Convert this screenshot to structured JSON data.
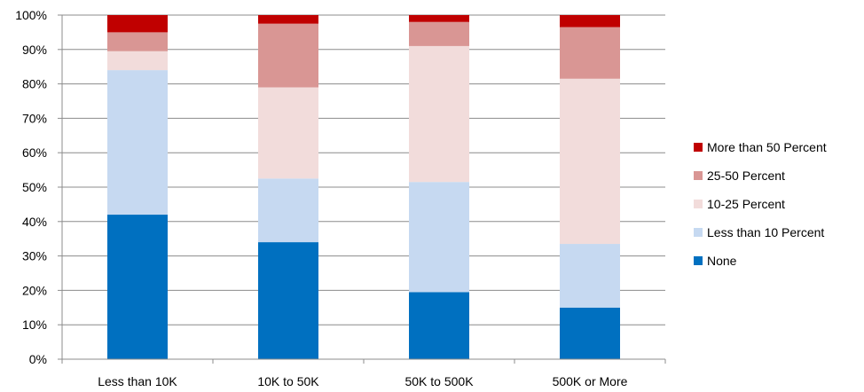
{
  "chart_data": {
    "type": "bar",
    "stacked": true,
    "normalized": true,
    "categories": [
      "Less than 10K",
      "10K to 50K",
      "50K to 500K",
      "500K or More"
    ],
    "series": [
      {
        "name": "None",
        "color": "#0070C0",
        "values": [
          42,
          34,
          19.5,
          15
        ]
      },
      {
        "name": "Less than 10 Percent",
        "color": "#C6D9F1",
        "values": [
          42,
          18.5,
          32,
          18.5
        ]
      },
      {
        "name": "10-25 Percent",
        "color": "#F2DCDB",
        "values": [
          5.5,
          26.5,
          39.5,
          48
        ]
      },
      {
        "name": "25-50 Percent",
        "color": "#D99694",
        "values": [
          5.5,
          18.5,
          7,
          15
        ]
      },
      {
        "name": "More than 50 Percent",
        "color": "#C00000",
        "values": [
          5,
          2.5,
          2,
          3.5
        ]
      }
    ],
    "yticks": [
      "0%",
      "10%",
      "20%",
      "30%",
      "40%",
      "50%",
      "60%",
      "70%",
      "80%",
      "90%",
      "100%"
    ],
    "ylim": [
      0,
      100
    ],
    "grid": true,
    "legend": "right",
    "title": "",
    "xlabel": "",
    "ylabel": ""
  }
}
